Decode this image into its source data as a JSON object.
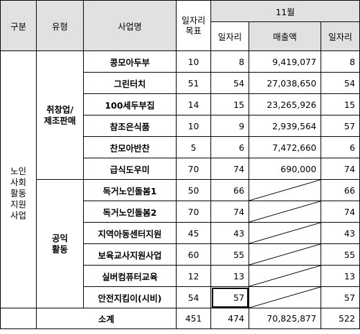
{
  "header": {
    "category": "구분",
    "type": "유형",
    "project_name": "사업명",
    "jobs_target": "일자리\n목표",
    "month": "11월",
    "jobs": "일자리",
    "revenue": "매출액",
    "jobs2": "일자리"
  },
  "category_label": "노인\n사회\n활동\n지원\n사업",
  "groups": [
    {
      "type_label": "취창업/\n제조판매",
      "rows": [
        {
          "name": "콩모아두부",
          "target": "10",
          "jobs": "8",
          "revenue": "9,419,077",
          "jobs2": "8"
        },
        {
          "name": "그린터치",
          "target": "51",
          "jobs": "54",
          "revenue": "27,038,650",
          "jobs2": "54"
        },
        {
          "name": "100세두부집",
          "target": "14",
          "jobs": "15",
          "revenue": "23,265,926",
          "jobs2": "15"
        },
        {
          "name": "참조은식품",
          "target": "10",
          "jobs": "9",
          "revenue": "2,939,564",
          "jobs2": "57"
        },
        {
          "name": "찬모아반찬",
          "target": "5",
          "jobs": "6",
          "revenue": "7,472,660",
          "jobs2": "6"
        },
        {
          "name": "급식도우미",
          "target": "70",
          "jobs": "74",
          "revenue": "690,000",
          "jobs2": "74"
        }
      ]
    },
    {
      "type_label": "공익\n활동",
      "rows": [
        {
          "name": "독거노인돌봄1",
          "target": "50",
          "jobs": "66",
          "revenue": "",
          "jobs2": "66"
        },
        {
          "name": "독거노인돌봄2",
          "target": "70",
          "jobs": "74",
          "revenue": "",
          "jobs2": "74"
        },
        {
          "name": "지역아동센터지원",
          "target": "45",
          "jobs": "43",
          "revenue": "",
          "jobs2": "43"
        },
        {
          "name": "보육교사지원사업",
          "target": "60",
          "jobs": "55",
          "revenue": "",
          "jobs2": "55"
        },
        {
          "name": "실버컴퓨터교육",
          "target": "12",
          "jobs": "13",
          "revenue": "",
          "jobs2": "13"
        },
        {
          "name": "안전지킴이(시비)",
          "target": "54",
          "jobs": "57",
          "revenue": "",
          "jobs2": "57"
        }
      ]
    }
  ],
  "subtotal": {
    "label": "소계",
    "target": "451",
    "jobs": "474",
    "revenue": "70,825,877",
    "jobs2": "522"
  }
}
